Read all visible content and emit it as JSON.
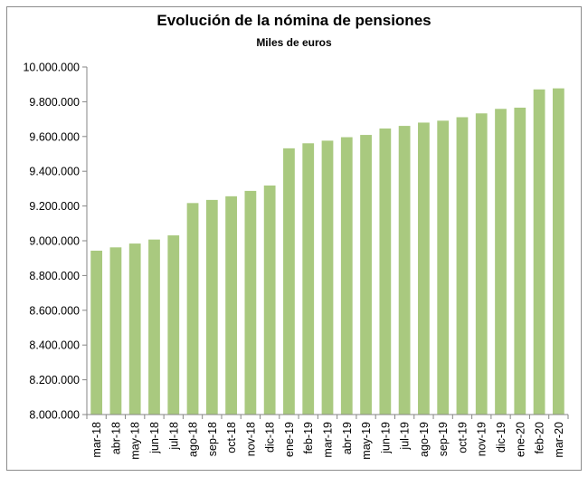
{
  "chart_data": {
    "type": "bar",
    "title": "Evolución de la nómina de pensiones",
    "subtitle": "Miles de euros",
    "xlabel": "",
    "ylabel": "",
    "ylim": [
      8000000,
      10000000
    ],
    "y_tick_step": 200000,
    "y_tick_labels": [
      "8.000.000",
      "8.200.000",
      "8.400.000",
      "8.600.000",
      "8.800.000",
      "9.000.000",
      "9.200.000",
      "9.400.000",
      "9.600.000",
      "9.800.000",
      "10.000.000"
    ],
    "grid": false,
    "legend": "none",
    "bar_color": "#a9c97f",
    "categories": [
      "mar-18",
      "abr-18",
      "may-18",
      "jun-18",
      "jul-18",
      "ago-18",
      "sep-18",
      "oct-18",
      "nov-18",
      "dic-18",
      "ene-19",
      "feb-19",
      "mar-19",
      "abr-19",
      "may-19",
      "jun-19",
      "jul-19",
      "ago-19",
      "sep-19",
      "oct-19",
      "nov-19",
      "dic-19",
      "ene-20",
      "feb-20",
      "mar-20"
    ],
    "values": [
      8943000,
      8962000,
      8984000,
      9007000,
      9031000,
      9217000,
      9235000,
      9256000,
      9287000,
      9318000,
      9532000,
      9561000,
      9576000,
      9596000,
      9609000,
      9646000,
      9661000,
      9680000,
      9691000,
      9711000,
      9733000,
      9759000,
      9766000,
      9871000,
      9877000
    ]
  }
}
